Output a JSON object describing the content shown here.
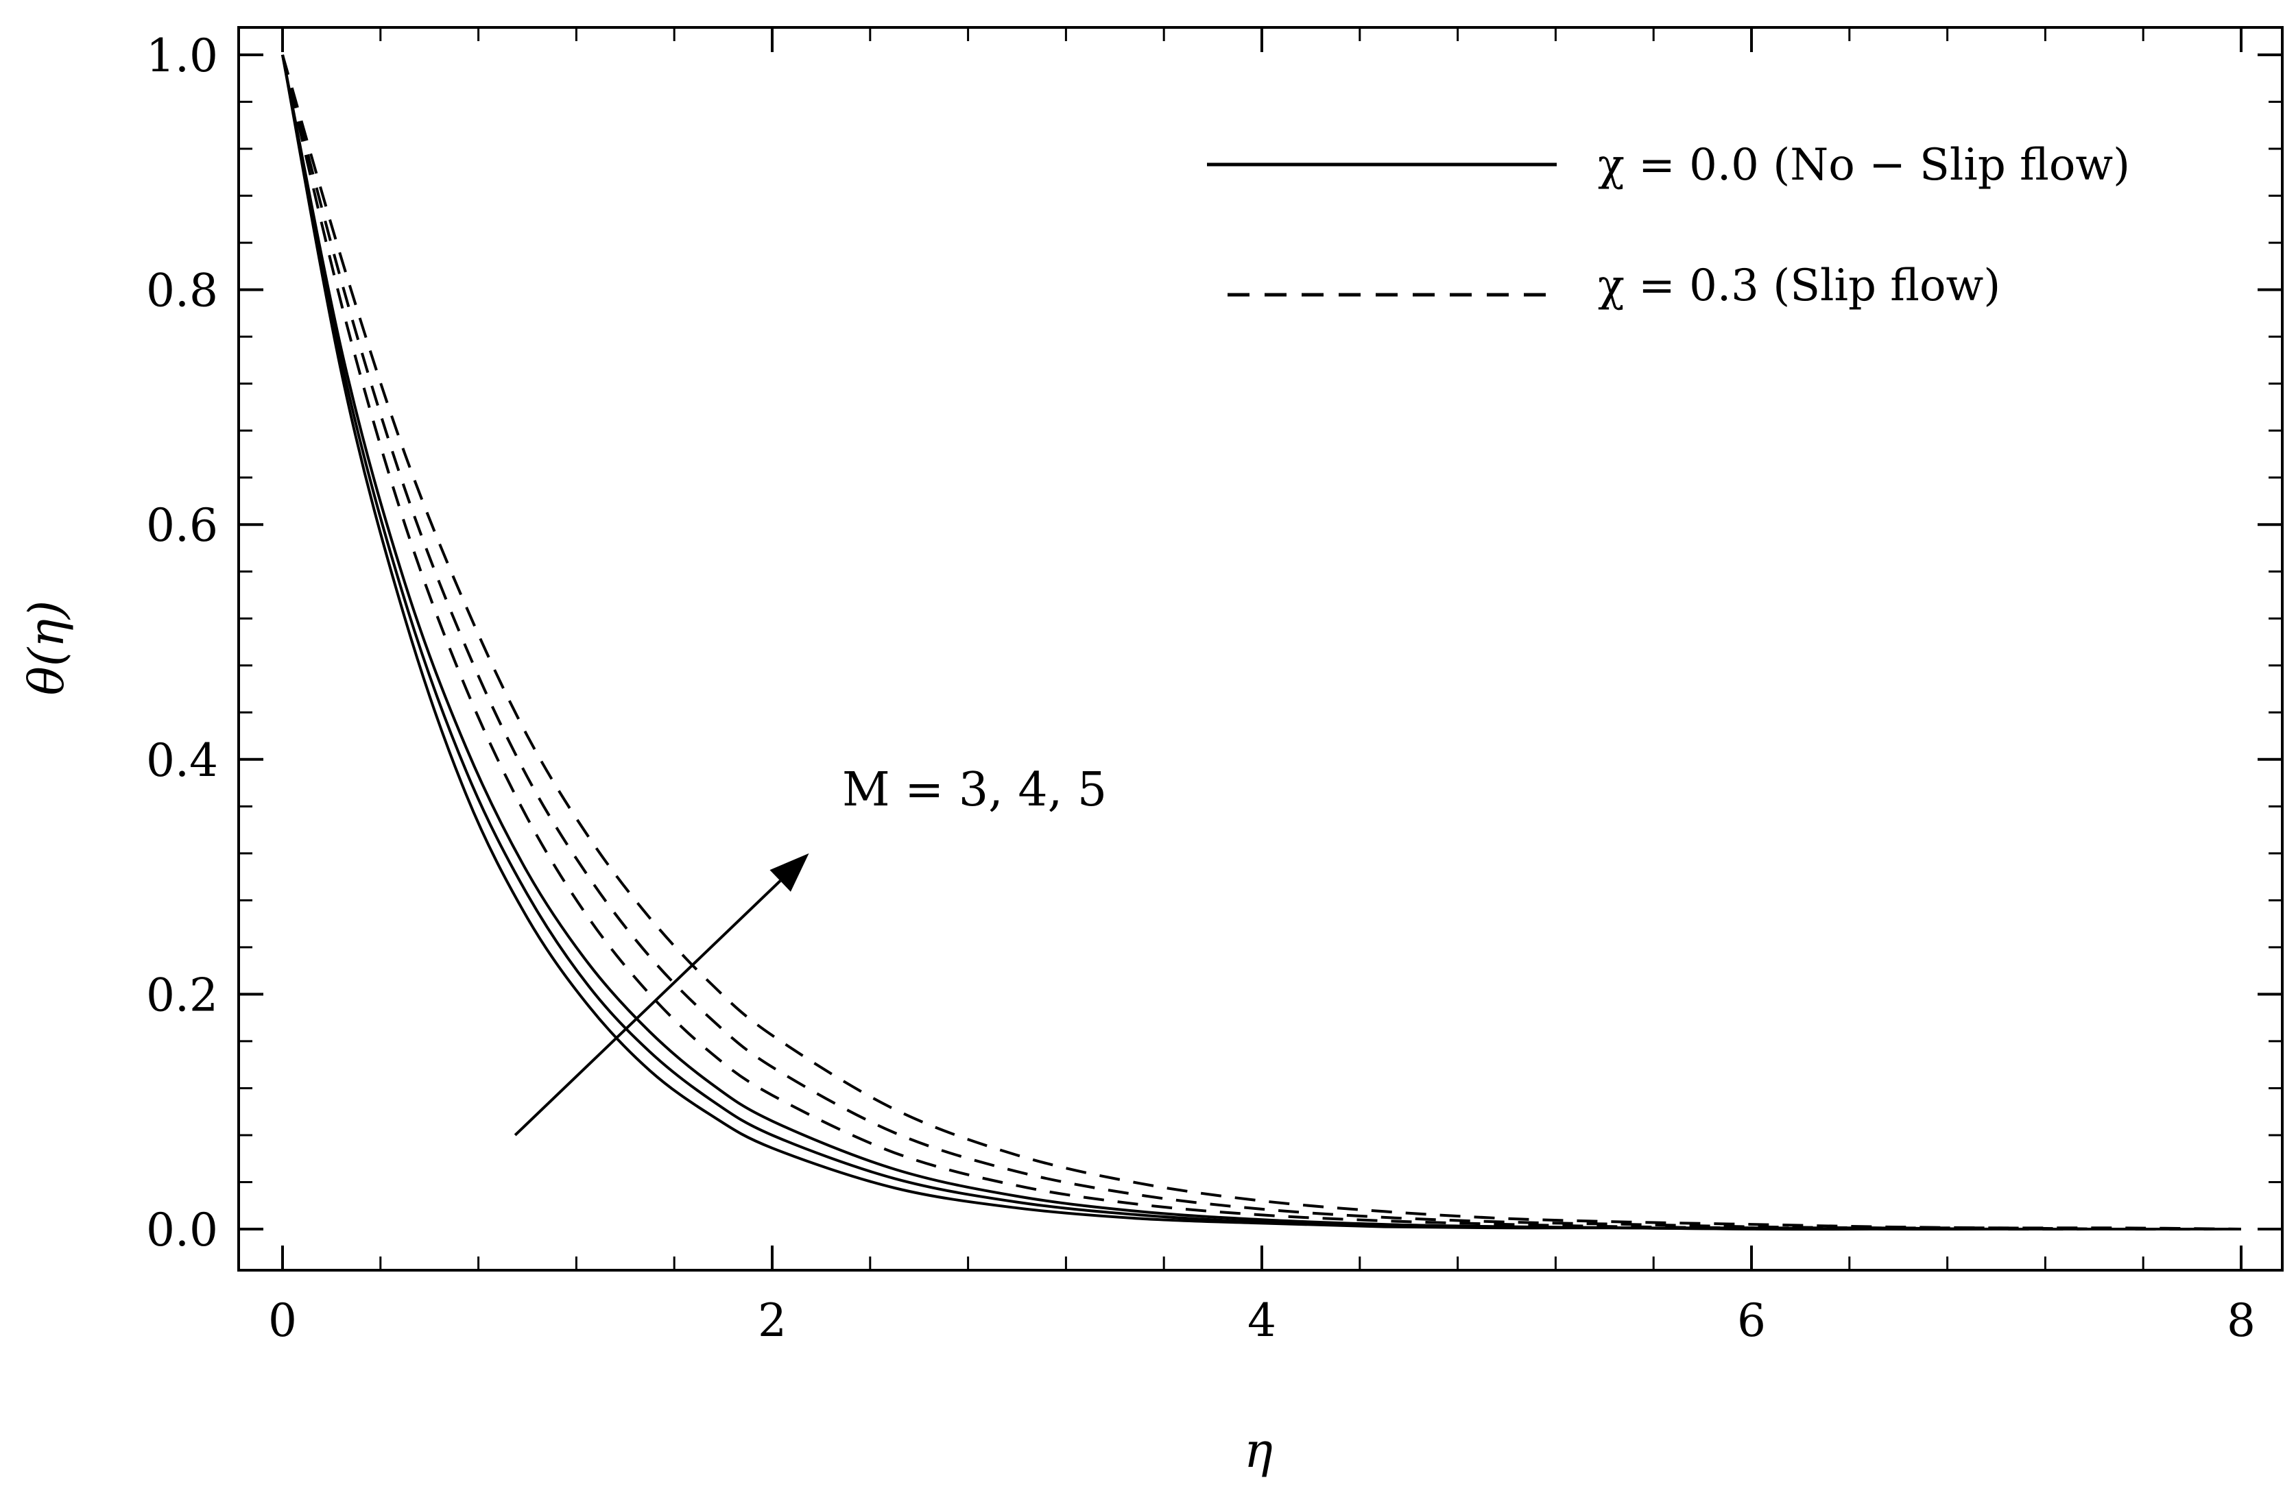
{
  "chart_data": {
    "type": "line",
    "title": "",
    "xlabel": "η",
    "ylabel": "θ(η)",
    "xlim": [
      0,
      8
    ],
    "ylim": [
      0,
      1.0
    ],
    "xticks": [
      "0",
      "2",
      "4",
      "6",
      "8"
    ],
    "yticks": [
      "0.0",
      "0.2",
      "0.4",
      "0.6",
      "0.8",
      "1.0"
    ],
    "grid": false,
    "legend_position": "top-right",
    "legend": [
      {
        "label": "χ = 0.0 (No − Slip flow)",
        "style": "solid"
      },
      {
        "label": "χ = 0.3 (Slip flow)",
        "style": "dashed"
      }
    ],
    "annotation": {
      "text": "M = 3, 4, 5",
      "arrow_from": [
        0.95,
        0.08
      ],
      "arrow_to": [
        2.15,
        0.32
      ]
    },
    "x": [
      0,
      0.25,
      0.5,
      0.75,
      1,
      1.25,
      1.5,
      1.75,
      2,
      2.5,
      3,
      3.5,
      4,
      4.5,
      5,
      5.5,
      6,
      6.5,
      7,
      7.5,
      8
    ],
    "series": [
      {
        "style": "solid",
        "M": 3,
        "values": [
          1.0,
          0.72,
          0.52,
          0.37,
          0.265,
          0.19,
          0.135,
          0.097,
          0.069,
          0.035,
          0.018,
          0.009,
          0.005,
          0.002,
          0.001,
          0.001,
          0.0,
          0.0,
          0.0,
          0.0,
          0.0
        ]
      },
      {
        "style": "solid",
        "M": 4,
        "values": [
          1.0,
          0.73,
          0.535,
          0.39,
          0.285,
          0.207,
          0.151,
          0.11,
          0.08,
          0.043,
          0.023,
          0.012,
          0.006,
          0.003,
          0.002,
          0.001,
          0.0,
          0.0,
          0.0,
          0.0,
          0.0
        ]
      },
      {
        "style": "solid",
        "M": 5,
        "values": [
          1.0,
          0.74,
          0.55,
          0.41,
          0.304,
          0.226,
          0.168,
          0.124,
          0.092,
          0.051,
          0.028,
          0.015,
          0.008,
          0.004,
          0.002,
          0.001,
          0.001,
          0.0,
          0.0,
          0.0,
          0.0
        ]
      },
      {
        "style": "dashed",
        "M": 3,
        "values": [
          1.0,
          0.78,
          0.6,
          0.46,
          0.35,
          0.265,
          0.2,
          0.15,
          0.114,
          0.065,
          0.037,
          0.021,
          0.012,
          0.007,
          0.004,
          0.002,
          0.001,
          0.001,
          0.0,
          0.0,
          0.0
        ]
      },
      {
        "style": "dashed",
        "M": 4,
        "values": [
          1.0,
          0.8,
          0.63,
          0.495,
          0.385,
          0.3,
          0.232,
          0.179,
          0.138,
          0.082,
          0.049,
          0.029,
          0.017,
          0.01,
          0.006,
          0.004,
          0.002,
          0.001,
          0.001,
          0.0,
          0.0
        ]
      },
      {
        "style": "dashed",
        "M": 5,
        "values": [
          1.0,
          0.82,
          0.66,
          0.53,
          0.42,
          0.334,
          0.265,
          0.209,
          0.165,
          0.102,
          0.063,
          0.039,
          0.024,
          0.015,
          0.009,
          0.006,
          0.004,
          0.002,
          0.001,
          0.001,
          0.0
        ]
      }
    ]
  }
}
